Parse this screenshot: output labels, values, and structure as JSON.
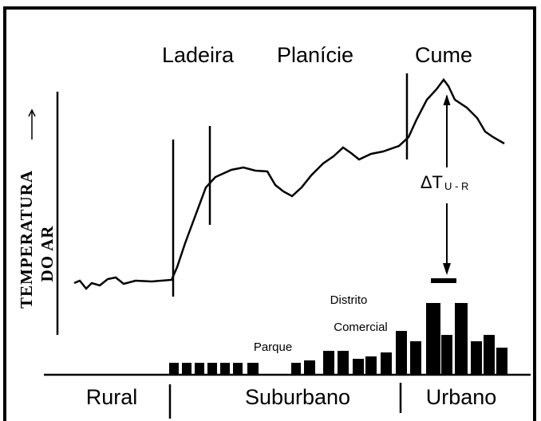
{
  "zones_top": [
    "Ladeira",
    "Planície",
    "Cume"
  ],
  "axis_label": [
    "TEMPERATURA",
    "DO AR"
  ],
  "delta": {
    "symbol": "ΔT",
    "subscript": "U - R"
  },
  "labels": {
    "parque": "Parque",
    "distrito": [
      "Distrito",
      "Comercial"
    ]
  },
  "zones_bottom": [
    "Rural",
    "Suburbano",
    "Urbano"
  ]
}
